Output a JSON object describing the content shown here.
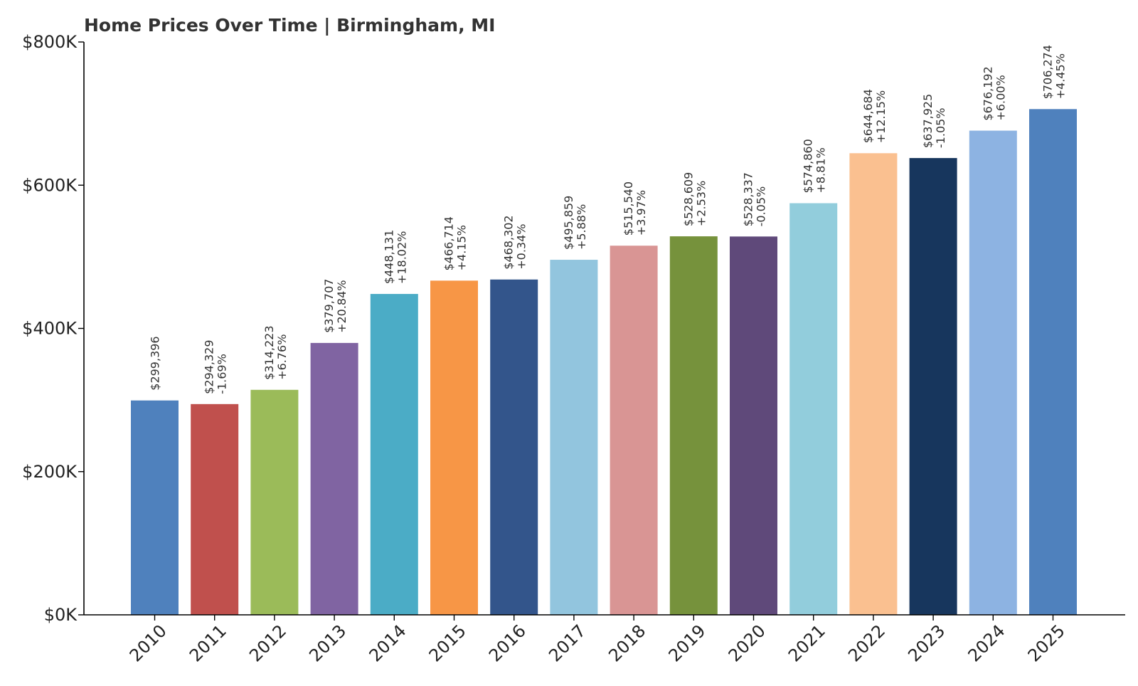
{
  "chart_data": {
    "type": "bar",
    "title": "Home Prices Over Time | Birmingham, MI",
    "xlabel": "",
    "ylabel": "",
    "ylim": [
      0,
      800000
    ],
    "grid": false,
    "yticks": [
      {
        "value": 0,
        "label": "$0K"
      },
      {
        "value": 200000,
        "label": "$200K"
      },
      {
        "value": 400000,
        "label": "$400K"
      },
      {
        "value": 600000,
        "label": "$600K"
      },
      {
        "value": 800000,
        "label": "$800K"
      }
    ],
    "categories": [
      "2010",
      "2011",
      "2012",
      "2013",
      "2014",
      "2015",
      "2016",
      "2017",
      "2018",
      "2019",
      "2020",
      "2021",
      "2022",
      "2023",
      "2024",
      "2025"
    ],
    "values": [
      299396,
      294329,
      314223,
      379707,
      448131,
      466714,
      468302,
      495859,
      515540,
      528609,
      528337,
      574860,
      644684,
      637925,
      676192,
      706274
    ],
    "value_labels": [
      "$299,396",
      "$294,329",
      "$314,223",
      "$379,707",
      "$448,131",
      "$466,714",
      "$468,302",
      "$495,859",
      "$515,540",
      "$528,609",
      "$528,337",
      "$574,860",
      "$644,684",
      "$637,925",
      "$676,192",
      "$706,274"
    ],
    "change_labels": [
      "",
      "-1.69%",
      "+6.76%",
      "+20.84%",
      "+18.02%",
      "+4.15%",
      "+0.34%",
      "+5.88%",
      "+3.97%",
      "+2.53%",
      "-0.05%",
      "+8.81%",
      "+12.15%",
      "-1.05%",
      "+6.00%",
      "+4.45%"
    ],
    "colors": [
      "#4f81bd",
      "#c0504d",
      "#9bbb59",
      "#8064a2",
      "#4bacc6",
      "#f79646",
      "#33558b",
      "#92c5de",
      "#d99594",
      "#76923c",
      "#5f497a",
      "#92cddc",
      "#fac090",
      "#17365d",
      "#8db3e2",
      "#4f81bd"
    ]
  }
}
